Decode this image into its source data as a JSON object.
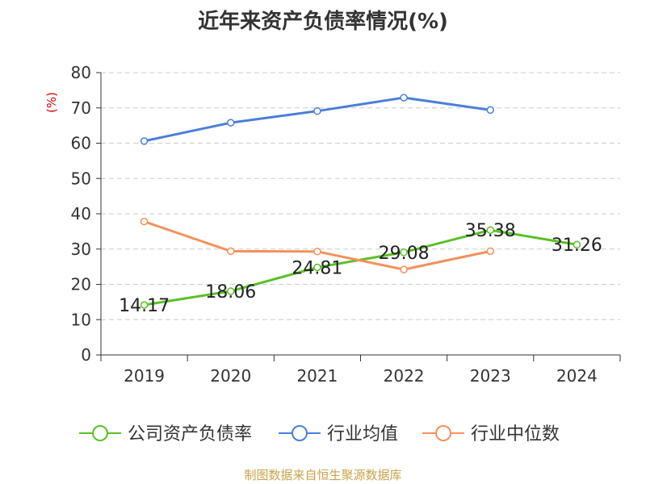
{
  "chart_data": {
    "type": "line",
    "title": "近年来资产负债率情况(%)",
    "ylabel": "(%)",
    "xlabel": "",
    "categories": [
      "2019",
      "2020",
      "2021",
      "2022",
      "2023",
      "2024"
    ],
    "ylim": [
      0,
      80
    ],
    "yticks": [
      0,
      10,
      20,
      30,
      40,
      50,
      60,
      70,
      80
    ],
    "grid": true,
    "legend_position": "bottom",
    "series": [
      {
        "name": "公司资产负债率",
        "color": "#5ac026",
        "values": [
          14.17,
          18.06,
          24.81,
          29.08,
          35.38,
          31.26
        ],
        "labels": [
          "14.17",
          "18.06",
          "24.81",
          "29.08",
          "35.38",
          "31.26"
        ]
      },
      {
        "name": "行业均值",
        "color": "#4b7fd8",
        "values": [
          60.6,
          65.8,
          69.1,
          72.9,
          69.4,
          null
        ]
      },
      {
        "name": "行业中位数",
        "color": "#f4905c",
        "values": [
          37.8,
          29.4,
          29.3,
          24.2,
          29.4,
          null
        ]
      }
    ]
  },
  "source": "制图数据来自恒生聚源数据库"
}
